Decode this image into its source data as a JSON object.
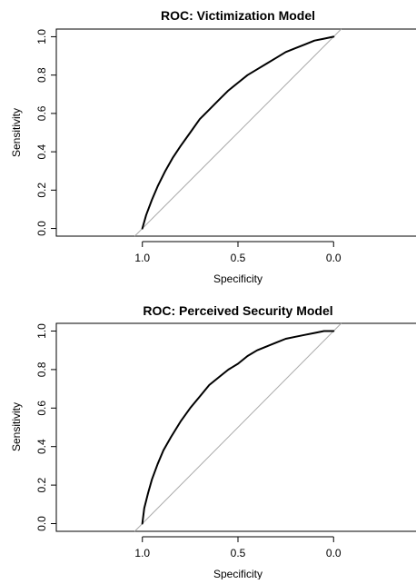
{
  "chart_data": [
    {
      "type": "line",
      "title": "ROC: Victimization Model",
      "xlabel": "Specificity",
      "ylabel": "Sensitivity",
      "xlim": [
        1.45,
        -0.45
      ],
      "ylim": [
        -0.04,
        1.04
      ],
      "x_reversed": true,
      "grid": false,
      "x_ticks": [
        1.0,
        0.5,
        0.0
      ],
      "x_tick_labels": [
        "1.0",
        "0.5",
        "0.0"
      ],
      "y_ticks": [
        0.0,
        0.2,
        0.4,
        0.6,
        0.8,
        1.0
      ],
      "y_tick_labels": [
        "0.0",
        "0.2",
        "0.4",
        "0.6",
        "0.8",
        "1.0"
      ],
      "reference_line": {
        "from": [
          1.0,
          0.0
        ],
        "to": [
          0.0,
          1.0
        ],
        "color": "#aaaaaa"
      },
      "series": [
        {
          "color": "#000000",
          "x": [
            1.0,
            0.98,
            0.95,
            0.92,
            0.88,
            0.84,
            0.8,
            0.75,
            0.7,
            0.65,
            0.6,
            0.55,
            0.5,
            0.45,
            0.4,
            0.35,
            0.3,
            0.25,
            0.2,
            0.15,
            0.1,
            0.05,
            0.0
          ],
          "y": [
            0.0,
            0.07,
            0.15,
            0.22,
            0.3,
            0.37,
            0.43,
            0.5,
            0.57,
            0.62,
            0.67,
            0.72,
            0.76,
            0.8,
            0.83,
            0.86,
            0.89,
            0.92,
            0.94,
            0.96,
            0.98,
            0.99,
            1.0
          ]
        }
      ]
    },
    {
      "type": "line",
      "title": "ROC: Perceived Security Model",
      "xlabel": "Specificity",
      "ylabel": "Sensitivity",
      "xlim": [
        1.45,
        -0.45
      ],
      "ylim": [
        -0.04,
        1.04
      ],
      "x_reversed": true,
      "grid": false,
      "x_ticks": [
        1.0,
        0.5,
        0.0
      ],
      "x_tick_labels": [
        "1.0",
        "0.5",
        "0.0"
      ],
      "y_ticks": [
        0.0,
        0.2,
        0.4,
        0.6,
        0.8,
        1.0
      ],
      "y_tick_labels": [
        "0.0",
        "0.2",
        "0.4",
        "0.6",
        "0.8",
        "1.0"
      ],
      "reference_line": {
        "from": [
          1.0,
          0.0
        ],
        "to": [
          0.0,
          1.0
        ],
        "color": "#aaaaaa"
      },
      "series": [
        {
          "color": "#000000",
          "x": [
            1.0,
            0.99,
            0.97,
            0.95,
            0.92,
            0.89,
            0.85,
            0.8,
            0.75,
            0.7,
            0.65,
            0.6,
            0.55,
            0.5,
            0.45,
            0.4,
            0.35,
            0.3,
            0.25,
            0.2,
            0.15,
            0.1,
            0.05,
            0.0
          ],
          "y": [
            0.0,
            0.08,
            0.16,
            0.23,
            0.31,
            0.38,
            0.45,
            0.53,
            0.6,
            0.66,
            0.72,
            0.76,
            0.8,
            0.83,
            0.87,
            0.9,
            0.92,
            0.94,
            0.96,
            0.97,
            0.98,
            0.99,
            1.0,
            1.0
          ]
        }
      ]
    }
  ]
}
